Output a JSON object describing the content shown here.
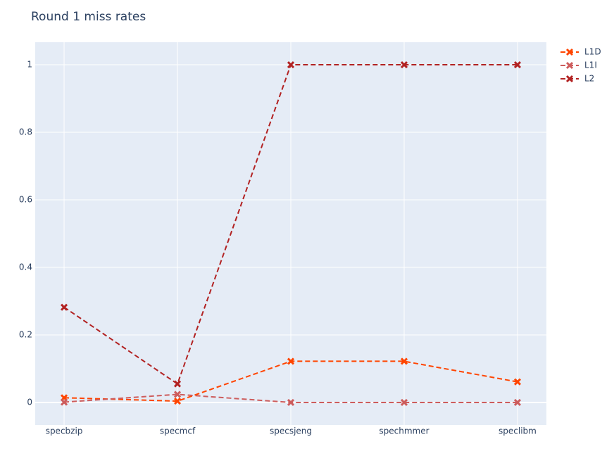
{
  "chart_data": {
    "type": "line",
    "title": "Round 1 miss rates",
    "categories": [
      "specbzip",
      "specmcf",
      "specsjeng",
      "spechmmer",
      "speclibm"
    ],
    "series": [
      {
        "name": "L1D",
        "color": "#ff4500",
        "values": [
          0.014,
          0.004,
          0.122,
          0.122,
          0.061
        ]
      },
      {
        "name": "L1I",
        "color": "#cd5c5c",
        "values": [
          0.001,
          0.024,
          0.0,
          0.0,
          0.0
        ]
      },
      {
        "name": "L2",
        "color": "#b22222",
        "values": [
          0.282,
          0.055,
          1.0,
          1.0,
          1.0
        ]
      }
    ],
    "ylim": [
      -0.0667,
      1.0667
    ],
    "yticks": [
      0,
      0.2,
      0.4,
      0.6,
      0.8,
      1
    ],
    "grid": true,
    "legend": "top-right"
  }
}
